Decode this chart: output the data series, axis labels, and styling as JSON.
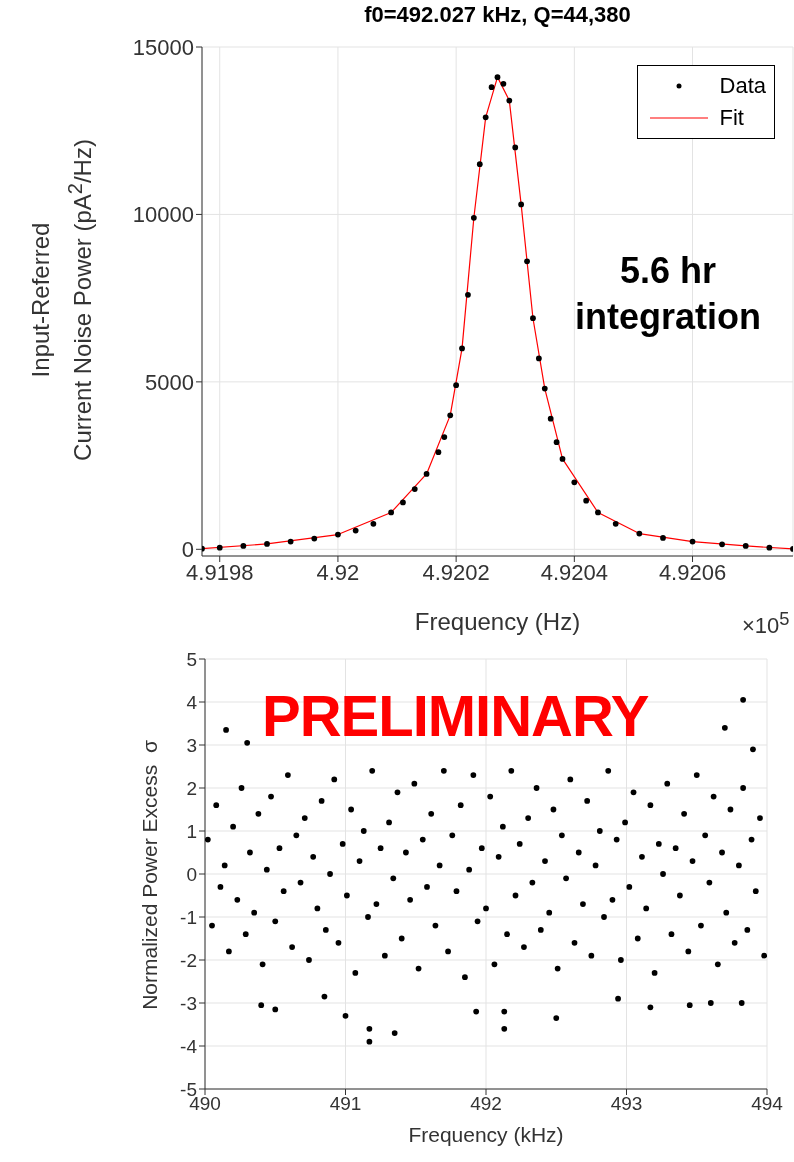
{
  "chart_data": [
    {
      "type": "scatter",
      "title": "f0=492.027 kHz, Q=44,380",
      "xlabel": "Frequency (Hz)",
      "ylabel": "Input-Referred\nCurrent Noise Power (pA$^{2}$/Hz)",
      "annotations": [
        "5.6 hr integration",
        "×10$^{5}$"
      ],
      "xlim": [
        4.91977,
        4.92077
      ],
      "xticks": [
        4.9198,
        4.92,
        4.9202,
        4.9204,
        4.9206
      ],
      "ylim": [
        -200,
        15000
      ],
      "yticks": [
        0,
        5000,
        10000,
        15000
      ],
      "grid": true,
      "legend": "top right",
      "series": [
        {
          "name": "Data",
          "type": "scatter",
          "marker": "circle",
          "color": "#000000",
          "x": [
            4.91977,
            4.9198,
            4.91984,
            4.91988,
            4.91992,
            4.91996,
            4.92,
            4.92003,
            4.92006,
            4.92009,
            4.92011,
            4.92013,
            4.92015,
            4.92017,
            4.92018,
            4.92019,
            4.9202,
            4.92021,
            4.92022,
            4.92023,
            4.92024,
            4.92025,
            4.92026,
            4.92027,
            4.92028,
            4.92029,
            4.9203,
            4.92031,
            4.92032,
            4.92033,
            4.92034,
            4.92035,
            4.92036,
            4.92037,
            4.92038,
            4.9204,
            4.92042,
            4.92044,
            4.92047,
            4.92051,
            4.92055,
            4.9206,
            4.92065,
            4.92069,
            4.92073,
            4.92077
          ],
          "values": [
            20,
            50,
            100,
            160,
            230,
            320,
            440,
            560,
            760,
            1100,
            1400,
            1800,
            2250,
            2900,
            3350,
            4000,
            4900,
            6000,
            7600,
            9900,
            11500,
            12900,
            13800,
            14100,
            13900,
            13400,
            12000,
            10300,
            8600,
            6900,
            5700,
            4800,
            3900,
            3200,
            2700,
            2000,
            1450,
            1100,
            760,
            470,
            340,
            230,
            150,
            100,
            50,
            10
          ]
        },
        {
          "name": "Fit",
          "type": "line",
          "marker": "none",
          "color": "#ff0000",
          "x": [
            4.91977,
            4.91988,
            4.92,
            4.92009,
            4.92015,
            4.92019,
            4.92021,
            4.92023,
            4.92025,
            4.92027,
            4.92029,
            4.92031,
            4.92033,
            4.92035,
            4.92038,
            4.92044,
            4.92051,
            4.9206,
            4.92069,
            4.92077
          ],
          "values": [
            20,
            160,
            440,
            1100,
            2250,
            4000,
            6000,
            9900,
            12900,
            14100,
            13400,
            10300,
            6900,
            4800,
            2700,
            1100,
            470,
            230,
            100,
            10
          ]
        }
      ]
    },
    {
      "type": "scatter",
      "xlabel": "Frequency (kHz)",
      "ylabel": "Normalized Power Excess  σ",
      "annotations": [
        "PRELIMINARY"
      ],
      "xlim": [
        490,
        494
      ],
      "xticks": [
        490,
        491,
        492,
        493,
        494
      ],
      "ylim": [
        -5,
        5
      ],
      "yticks": [
        -5,
        -4,
        -3,
        -2,
        -1,
        0,
        1,
        2,
        3,
        4,
        5
      ],
      "grid": true,
      "marker": "circle",
      "color": "#000000",
      "x": [
        490.02,
        490.05,
        490.08,
        490.11,
        490.14,
        490.17,
        490.2,
        490.23,
        490.26,
        490.29,
        490.32,
        490.35,
        490.38,
        490.41,
        490.44,
        490.47,
        490.5,
        490.53,
        490.56,
        490.59,
        490.62,
        490.65,
        490.68,
        490.71,
        490.74,
        490.77,
        490.8,
        490.83,
        490.86,
        490.89,
        490.92,
        490.95,
        490.98,
        491.01,
        491.04,
        491.07,
        491.1,
        491.13,
        491.16,
        491.19,
        491.22,
        491.25,
        491.28,
        491.31,
        491.34,
        491.37,
        491.4,
        491.43,
        491.46,
        491.49,
        491.52,
        491.55,
        491.58,
        491.61,
        491.64,
        491.67,
        491.7,
        491.73,
        491.76,
        491.79,
        491.82,
        491.85,
        491.88,
        491.91,
        491.94,
        491.97,
        492.0,
        492.03,
        492.06,
        492.09,
        492.12,
        492.15,
        492.18,
        492.21,
        492.24,
        492.27,
        492.3,
        492.33,
        492.36,
        492.39,
        492.42,
        492.45,
        492.48,
        492.51,
        492.54,
        492.57,
        492.6,
        492.63,
        492.66,
        492.69,
        492.72,
        492.75,
        492.78,
        492.81,
        492.84,
        492.87,
        492.9,
        492.93,
        492.96,
        492.99,
        493.02,
        493.05,
        493.08,
        493.11,
        493.14,
        493.17,
        493.2,
        493.23,
        493.26,
        493.29,
        493.32,
        493.35,
        493.38,
        493.41,
        493.44,
        493.47,
        493.5,
        493.53,
        493.56,
        493.59,
        493.62,
        493.65,
        493.68,
        493.71,
        493.74,
        493.77,
        493.8,
        493.83,
        493.86,
        493.89,
        493.92,
        493.95,
        493.98,
        491.17,
        491.17,
        491.35,
        492.13,
        492.5,
        491.0,
        493.83,
        493.7,
        493.9,
        490.15,
        490.3,
        490.4,
        490.5,
        492.13,
        491.93,
        493.17,
        493.82,
        493.6,
        493.45,
        492.94,
        490.85
      ],
      "values": [
        0.8,
        -1.2,
        1.6,
        -0.3,
        0.2,
        -1.8,
        1.1,
        -0.6,
        2.0,
        -1.4,
        0.5,
        -0.9,
        1.4,
        -2.1,
        0.1,
        1.8,
        -1.1,
        0.6,
        -0.4,
        2.3,
        -1.7,
        0.9,
        -0.2,
        1.3,
        -2.0,
        0.4,
        -0.8,
        1.7,
        -1.3,
        0.0,
        2.2,
        -1.6,
        0.7,
        -0.5,
        1.5,
        -2.3,
        0.3,
        1.0,
        -1.0,
        2.4,
        -0.7,
        0.6,
        -1.9,
        1.2,
        -0.1,
        1.9,
        -1.5,
        0.5,
        -0.6,
        2.1,
        -2.2,
        0.8,
        -0.3,
        1.4,
        -1.2,
        0.2,
        2.4,
        -1.8,
        0.9,
        -0.4,
        1.6,
        -2.4,
        0.1,
        2.3,
        -1.1,
        0.6,
        -0.8,
        1.8,
        -2.1,
        0.4,
        1.1,
        -1.4,
        2.4,
        -0.5,
        0.7,
        -1.7,
        1.3,
        -0.2,
        2.0,
        -1.3,
        0.3,
        -0.9,
        1.5,
        -2.2,
        0.9,
        -0.1,
        2.2,
        -1.6,
        0.5,
        -0.7,
        1.7,
        -1.9,
        0.2,
        1.0,
        -1.0,
        2.4,
        -0.6,
        0.8,
        -2.0,
        1.2,
        -0.3,
        1.9,
        -1.5,
        0.4,
        -0.8,
        1.6,
        -2.3,
        0.7,
        0.0,
        2.1,
        -1.4,
        0.6,
        -0.5,
        1.4,
        -1.8,
        0.3,
        2.3,
        -1.2,
        0.9,
        -0.2,
        1.8,
        -2.1,
        0.5,
        -0.9,
        1.5,
        -1.6,
        0.2,
        2.0,
        -1.3,
        0.8,
        -0.4,
        1.3,
        -1.9,
        -3.6,
        -3.9,
        -3.7,
        -3.6,
        -3.35,
        -3.3,
        4.05,
        3.4,
        2.9,
        3.35,
        3.05,
        -3.05,
        -3.15,
        -3.2,
        -3.2,
        -3.1,
        -3.0,
        -3.0,
        -3.05,
        -2.9,
        -2.85
      ]
    }
  ]
}
